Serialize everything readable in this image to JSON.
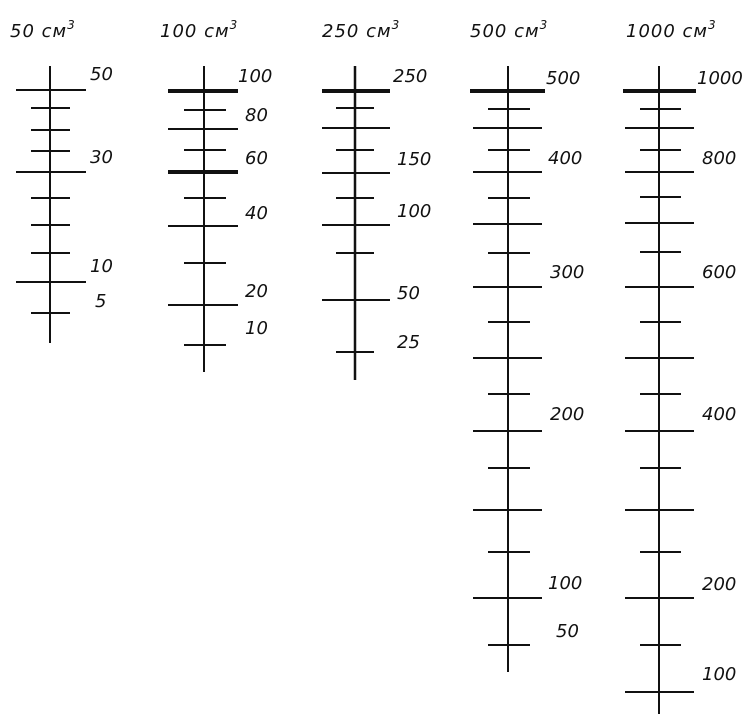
{
  "colors": {
    "ink": "#111111",
    "background": "#ffffff"
  },
  "cylinders": [
    {
      "id": "c50",
      "title": "50 см",
      "sup": "3",
      "labels": [
        "50",
        "30",
        "10",
        "5"
      ],
      "scale": {
        "top": "50",
        "bottom": "0"
      }
    },
    {
      "id": "c100",
      "title": "100 см",
      "sup": "3",
      "labels": [
        "100",
        "80",
        "60",
        "40",
        "20",
        "10"
      ]
    },
    {
      "id": "c250",
      "title": "250 см",
      "sup": "3",
      "labels": [
        "250",
        "150",
        "100",
        "50",
        "25"
      ]
    },
    {
      "id": "c500",
      "title": "500 см",
      "sup": "3",
      "labels": [
        "500",
        "400",
        "300",
        "200",
        "100",
        "50"
      ]
    },
    {
      "id": "c1000",
      "title": "1000 см",
      "sup": "3",
      "labels": [
        "1000",
        "800",
        "600",
        "400",
        "200",
        "100"
      ]
    }
  ]
}
